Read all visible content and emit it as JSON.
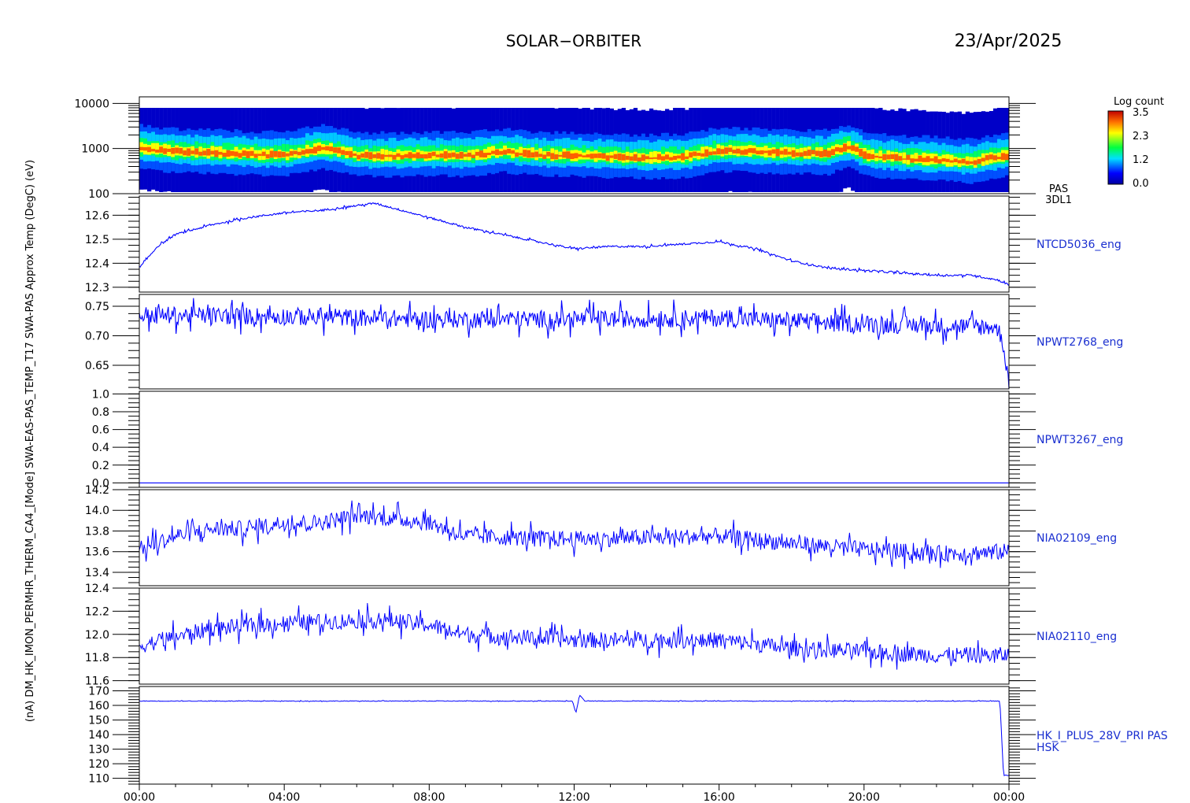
{
  "header": {
    "mission": "SOLAR−ORBITER",
    "date": "23/Apr/2025"
  },
  "colors": {
    "trace": "#0000ff",
    "label": "#1a2fd0",
    "axes": "#000000"
  },
  "time_axis": {
    "tick_labels": [
      "00:00",
      "04:00",
      "08:00",
      "12:00",
      "16:00",
      "20:00",
      "00:00"
    ]
  },
  "stacked_ylabel": "(nA) DM_HK_IMON_PERMHR_THERM_CA4_[Mode] SWA-EAS-PAS_TEMP_T17 SWA-PAS Approx Temp (DegC) (eV)",
  "chart_data": [
    {
      "type": "heatmap",
      "id": "pas-3dl1",
      "ylabel": "(eV)",
      "yscale": "log",
      "ylim": [
        100,
        14000
      ],
      "tick_labels": [
        "10000",
        "1000",
        "100"
      ],
      "right_label": [
        "PAS",
        "3DL1"
      ],
      "colorbar": {
        "title": "Log count",
        "tick_labels": [
          "3.5",
          "2.3",
          "1.2",
          "0.0"
        ],
        "range": [
          0.0,
          3.5
        ]
      },
      "peak_energy_eV": [
        [
          0,
          1000
        ],
        [
          1,
          850
        ],
        [
          2,
          800
        ],
        [
          3,
          750
        ],
        [
          4,
          720
        ],
        [
          5,
          1000
        ],
        [
          6,
          700
        ],
        [
          7,
          700
        ],
        [
          8,
          720
        ],
        [
          9,
          700
        ],
        [
          10,
          850
        ],
        [
          11,
          720
        ],
        [
          12,
          700
        ],
        [
          13,
          650
        ],
        [
          14,
          620
        ],
        [
          15,
          650
        ],
        [
          16,
          900
        ],
        [
          17,
          850
        ],
        [
          18,
          800
        ],
        [
          19,
          780
        ],
        [
          19.5,
          1100
        ],
        [
          20,
          700
        ],
        [
          21,
          600
        ],
        [
          22,
          550
        ],
        [
          23,
          500
        ],
        [
          23.5,
          620
        ],
        [
          24,
          700
        ]
      ]
    },
    {
      "type": "line",
      "id": "ntcd5036",
      "series": [
        {
          "name": "NTCD5036_eng"
        }
      ],
      "ylim": [
        12.28,
        12.68
      ],
      "tick_labels": [
        "12.6",
        "12.5",
        "12.4",
        "12.3"
      ],
      "ticks": [
        12.6,
        12.5,
        12.4,
        12.3
      ],
      "points": [
        [
          0,
          12.38
        ],
        [
          0.5,
          12.47
        ],
        [
          1,
          12.52
        ],
        [
          2,
          12.56
        ],
        [
          3,
          12.59
        ],
        [
          4,
          12.61
        ],
        [
          5,
          12.62
        ],
        [
          6,
          12.64
        ],
        [
          6.5,
          12.65
        ],
        [
          7,
          12.63
        ],
        [
          8,
          12.59
        ],
        [
          9,
          12.55
        ],
        [
          10,
          12.52
        ],
        [
          11,
          12.49
        ],
        [
          12,
          12.46
        ],
        [
          13,
          12.47
        ],
        [
          14,
          12.47
        ],
        [
          15,
          12.48
        ],
        [
          16,
          12.49
        ],
        [
          17,
          12.46
        ],
        [
          18,
          12.41
        ],
        [
          19,
          12.38
        ],
        [
          20,
          12.37
        ],
        [
          21,
          12.36
        ],
        [
          22,
          12.35
        ],
        [
          23,
          12.35
        ],
        [
          23.7,
          12.33
        ],
        [
          24,
          12.31
        ]
      ],
      "noise": 0.004
    },
    {
      "type": "line",
      "id": "npwt2768",
      "series": [
        {
          "name": "NPWT2768_eng"
        }
      ],
      "ylim": [
        0.61,
        0.77
      ],
      "tick_labels": [
        "0.75",
        "0.70",
        "0.65"
      ],
      "ticks": [
        0.75,
        0.7,
        0.65
      ],
      "points": [
        [
          0,
          0.735
        ],
        [
          4,
          0.733
        ],
        [
          8,
          0.728
        ],
        [
          12,
          0.728
        ],
        [
          16,
          0.73
        ],
        [
          20,
          0.72
        ],
        [
          23.6,
          0.715
        ],
        [
          23.8,
          0.7
        ],
        [
          24,
          0.62
        ]
      ],
      "noise": 0.015
    },
    {
      "type": "line",
      "id": "npwt3267",
      "series": [
        {
          "name": "NPWT3267_eng"
        }
      ],
      "ylim": [
        -0.05,
        1.03
      ],
      "tick_labels": [
        "1.0",
        "0.8",
        "0.6",
        "0.4",
        "0.2",
        "0.0"
      ],
      "ticks": [
        1.0,
        0.8,
        0.6,
        0.4,
        0.2,
        0.0
      ],
      "points": [
        [
          0,
          0.0
        ],
        [
          24,
          0.0
        ]
      ],
      "noise": 0.0
    },
    {
      "type": "line",
      "id": "nia02109",
      "series": [
        {
          "name": "NIA02109_eng"
        }
      ],
      "ylim": [
        13.27,
        14.2
      ],
      "tick_labels": [
        "14.2",
        "14.0",
        "13.8",
        "13.6",
        "13.4"
      ],
      "ticks": [
        14.2,
        14.0,
        13.8,
        13.6,
        13.4
      ],
      "points": [
        [
          0,
          13.62
        ],
        [
          1,
          13.75
        ],
        [
          2,
          13.82
        ],
        [
          3,
          13.82
        ],
        [
          4,
          13.88
        ],
        [
          5,
          13.88
        ],
        [
          6,
          13.95
        ],
        [
          7,
          13.92
        ],
        [
          8,
          13.88
        ],
        [
          9,
          13.75
        ],
        [
          12,
          13.72
        ],
        [
          16,
          13.75
        ],
        [
          18,
          13.68
        ],
        [
          20,
          13.62
        ],
        [
          22,
          13.58
        ],
        [
          24,
          13.6
        ]
      ],
      "noise": 0.08
    },
    {
      "type": "line",
      "id": "nia02110",
      "series": [
        {
          "name": "NIA02110_eng"
        }
      ],
      "ylim": [
        11.57,
        12.4
      ],
      "tick_labels": [
        "12.4",
        "12.2",
        "12.0",
        "11.8",
        "11.6"
      ],
      "ticks": [
        12.4,
        12.2,
        12.0,
        11.8,
        11.6
      ],
      "points": [
        [
          0,
          11.9
        ],
        [
          1,
          11.98
        ],
        [
          2,
          12.05
        ],
        [
          3,
          12.07
        ],
        [
          4,
          12.1
        ],
        [
          6,
          12.12
        ],
        [
          7,
          12.12
        ],
        [
          8,
          12.08
        ],
        [
          9,
          12.0
        ],
        [
          12,
          11.95
        ],
        [
          16,
          11.95
        ],
        [
          18,
          11.88
        ],
        [
          20,
          11.85
        ],
        [
          22,
          11.82
        ],
        [
          24,
          11.82
        ]
      ],
      "noise": 0.07
    },
    {
      "type": "line",
      "id": "hk-i-plus-28v",
      "series": [
        {
          "name": "HK_I_PLUS_28V_PRI PAS"
        }
      ],
      "right_label": [
        "HK_I_PLUS_28V_PRI PAS",
        "HSK"
      ],
      "ylim": [
        106,
        173
      ],
      "tick_labels": [
        "170",
        "160",
        "150",
        "140",
        "130",
        "120",
        "110"
      ],
      "ticks": [
        170,
        160,
        150,
        140,
        130,
        120,
        110
      ],
      "points": [
        [
          0,
          163
        ],
        [
          11.95,
          163
        ],
        [
          12.05,
          155
        ],
        [
          12.15,
          167
        ],
        [
          12.3,
          163
        ],
        [
          23.75,
          163
        ],
        [
          23.85,
          112
        ],
        [
          24,
          112
        ]
      ],
      "noise": 0.2
    }
  ]
}
